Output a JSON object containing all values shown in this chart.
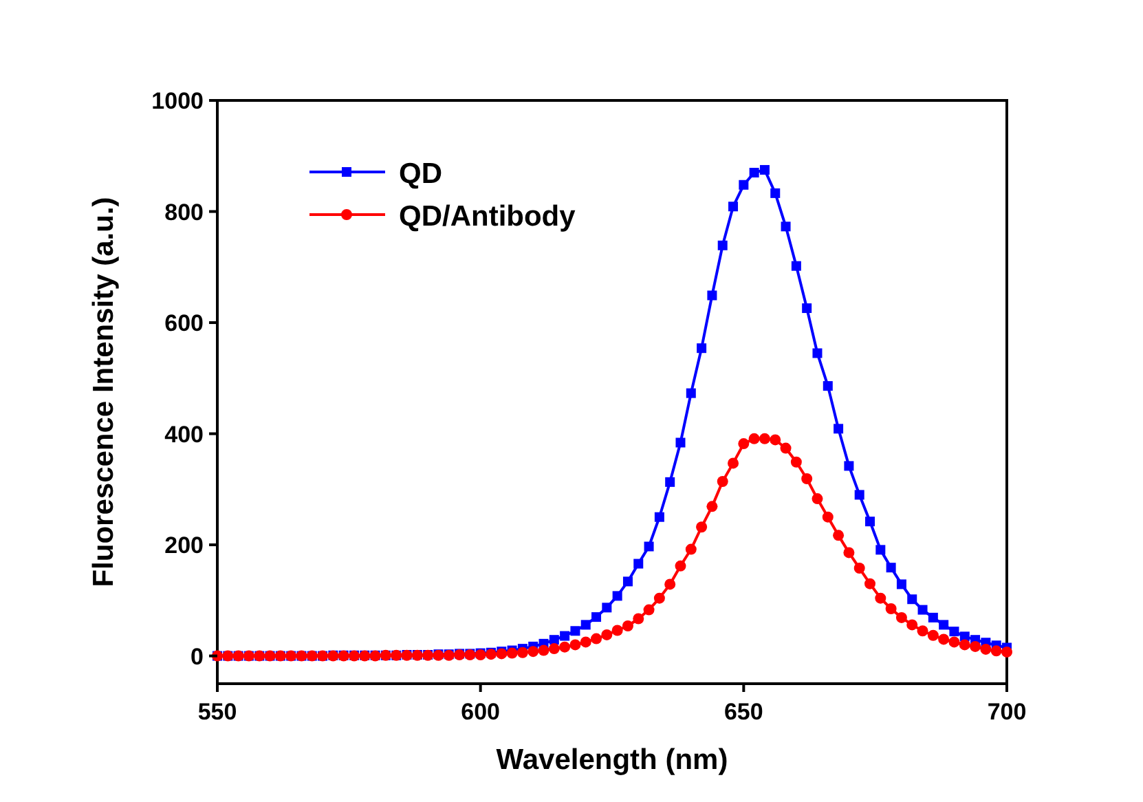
{
  "chart_data": {
    "type": "line",
    "xlabel": "Wavelength (nm)",
    "ylabel": "Fluorescence Intensity (a.u.)",
    "x": [
      550,
      552,
      554,
      556,
      558,
      560,
      562,
      564,
      566,
      568,
      570,
      572,
      574,
      576,
      578,
      580,
      582,
      584,
      586,
      588,
      590,
      592,
      594,
      596,
      598,
      600,
      602,
      604,
      606,
      608,
      610,
      612,
      614,
      616,
      618,
      620,
      622,
      624,
      626,
      628,
      630,
      632,
      634,
      636,
      638,
      640,
      642,
      644,
      646,
      648,
      650,
      652,
      654,
      656,
      658,
      660,
      662,
      664,
      666,
      668,
      670,
      672,
      674,
      676,
      678,
      680,
      682,
      684,
      686,
      688,
      690,
      692,
      694,
      696,
      698,
      700
    ],
    "series": [
      {
        "name": "QD",
        "color": "#0000ff",
        "marker": "square",
        "values": [
          0,
          0,
          0,
          0,
          0,
          0,
          0,
          0,
          0,
          0,
          0,
          1,
          1,
          1,
          1,
          1,
          1,
          1,
          2,
          2,
          2,
          3,
          3,
          4,
          4,
          5,
          6,
          8,
          10,
          13,
          17,
          22,
          29,
          36,
          45,
          56,
          70,
          87,
          108,
          134,
          166,
          197,
          250,
          313,
          384,
          473,
          554,
          649,
          739,
          809,
          848,
          870,
          875,
          833,
          773,
          702,
          626,
          545,
          486,
          409,
          342,
          290,
          242,
          191,
          159,
          129,
          102,
          83,
          69,
          56,
          44,
          35,
          29,
          24,
          19,
          15
        ]
      },
      {
        "name": "QD/Antibody",
        "color": "#ff0000",
        "marker": "circle",
        "values": [
          0,
          0,
          0,
          0,
          0,
          0,
          0,
          0,
          0,
          0,
          0,
          0,
          0,
          0,
          0,
          0,
          1,
          1,
          1,
          1,
          1,
          1,
          1,
          2,
          2,
          2,
          3,
          4,
          5,
          6,
          8,
          10,
          13,
          16,
          20,
          25,
          31,
          38,
          46,
          54,
          67,
          83,
          104,
          129,
          162,
          192,
          232,
          269,
          314,
          347,
          382,
          391,
          391,
          389,
          374,
          349,
          319,
          283,
          250,
          217,
          186,
          158,
          130,
          104,
          85,
          69,
          56,
          45,
          37,
          30,
          25,
          20,
          17,
          12,
          9,
          7
        ]
      }
    ],
    "xlim": [
      550,
      700
    ],
    "xticks": [
      550,
      600,
      650,
      700
    ],
    "ylim": [
      -50,
      1000
    ],
    "yticks": [
      0,
      200,
      400,
      600,
      800,
      1000
    ],
    "grid": false,
    "legend": "top left",
    "line_style": "solid"
  }
}
